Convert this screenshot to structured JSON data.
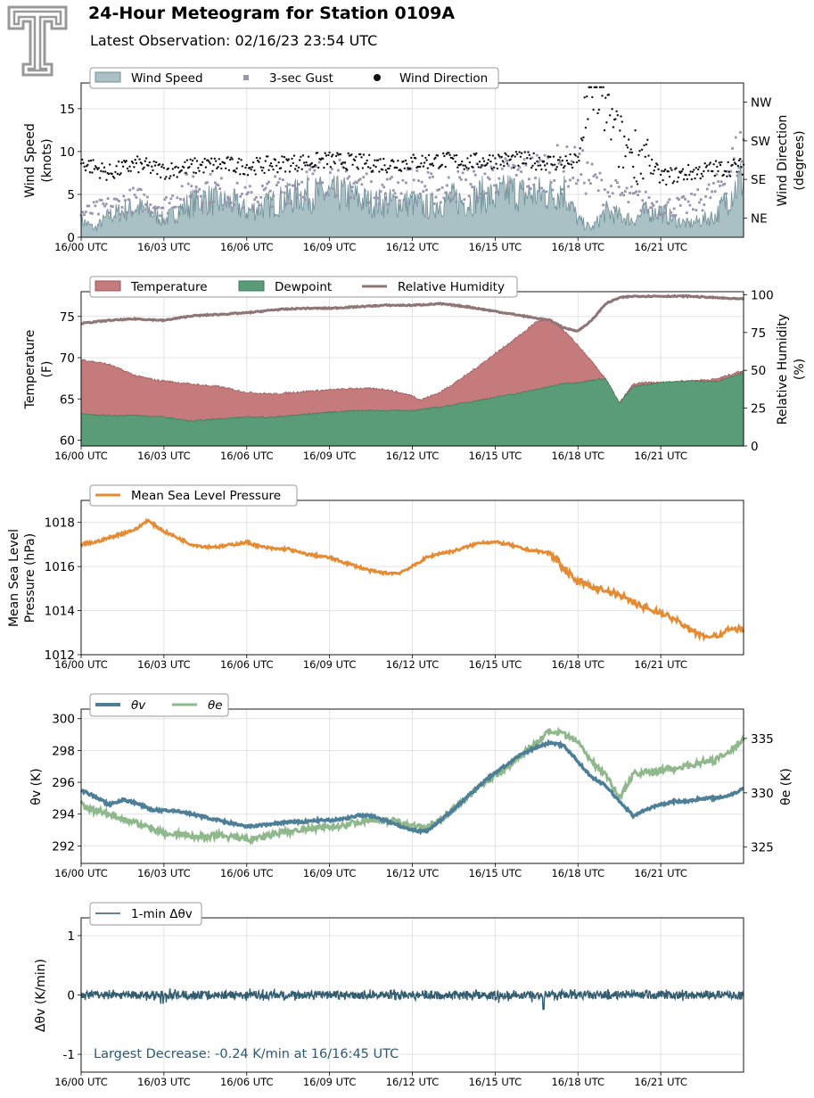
{
  "header": {
    "title": "24-Hour Meteogram for Station 0109A",
    "subtitle": "Latest Observation: 02/16/23 23:54 UTC"
  },
  "colors": {
    "wind_speed": "#a9c0c5",
    "wind_speed_line": "#6f8f97",
    "gust": "#9a94b3",
    "direction": "#111111",
    "temperature": "#c57a7b",
    "dewpoint": "#5a9c78",
    "rh": "#8f7576",
    "pressure": "#e48b33",
    "theta_v": "#4d7f98",
    "theta_e": "#8fb98c",
    "dtheta": "#335d70",
    "annotation": "#2b5a75"
  },
  "x_ticks": [
    "16/00 UTC",
    "16/03 UTC",
    "16/06 UTC",
    "16/09 UTC",
    "16/12 UTC",
    "16/15 UTC",
    "16/18 UTC",
    "16/21 UTC"
  ],
  "chart_data": [
    {
      "id": "wind",
      "type": "area",
      "xlim_hours": [
        0,
        24
      ],
      "ylabel": "Wind Speed (knots)",
      "ylabel_lines": [
        "Wind Speed",
        "(knots)"
      ],
      "ylim": [
        0,
        18
      ],
      "yticks": [
        "0",
        "5",
        "10",
        "15"
      ],
      "y2label_lines": [
        "Wind Direction",
        "(degrees)"
      ],
      "y2lim": [
        0,
        360
      ],
      "y2ticks": [
        {
          "value": 45,
          "label": "NE"
        },
        {
          "value": 135,
          "label": "SE"
        },
        {
          "value": 225,
          "label": "SW"
        },
        {
          "value": 315,
          "label": "NW"
        }
      ],
      "legend": [
        "Wind Speed",
        "3-sec Gust",
        "Wind Direction"
      ],
      "series": [
        {
          "name": "Wind Speed",
          "x": [
            0,
            0.5,
            1,
            1.5,
            2,
            2.5,
            3,
            3.5,
            4,
            4.5,
            5,
            5.5,
            6,
            6.5,
            7,
            7.5,
            8,
            8.5,
            9,
            9.5,
            10,
            10.5,
            11,
            11.5,
            12,
            12.5,
            13,
            13.5,
            14,
            14.5,
            15,
            15.5,
            16,
            16.5,
            17,
            17.5,
            18,
            18.5,
            19,
            19.5,
            20,
            20.5,
            21,
            21.5,
            22,
            22.5,
            23,
            23.5,
            24
          ],
          "values": [
            2,
            1,
            2.5,
            3,
            3.5,
            3,
            2,
            3,
            4,
            4.5,
            4,
            4,
            3,
            3.5,
            4,
            4.5,
            5,
            5,
            5,
            5,
            4.5,
            4,
            4,
            4,
            4,
            3.5,
            4,
            4.5,
            4,
            5,
            4.5,
            5.5,
            5,
            5,
            5,
            5.5,
            2,
            1,
            3,
            2.5,
            2,
            3,
            3,
            2,
            1.5,
            2,
            2.5,
            5,
            7
          ]
        },
        {
          "name": "3-sec Gust",
          "x": [
            0,
            1,
            2,
            3,
            4,
            5,
            6,
            7,
            8,
            9,
            10,
            11,
            12,
            13,
            14,
            15,
            16,
            17,
            18,
            19,
            20,
            21,
            22,
            23,
            24
          ],
          "values": [
            3,
            4,
            5,
            4,
            7,
            6,
            5,
            6,
            7,
            8,
            7,
            6,
            7,
            6,
            7,
            8,
            8,
            9,
            9,
            6,
            5,
            4,
            4,
            6,
            12
          ]
        },
        {
          "name": "Wind Direction",
          "x": [
            0,
            1,
            2,
            3,
            4,
            5,
            6,
            7,
            8,
            9,
            10,
            11,
            12,
            13,
            14,
            15,
            16,
            17,
            18,
            18.5,
            19,
            19.5,
            20,
            20.5,
            21,
            22,
            23,
            24
          ],
          "values": [
            175,
            150,
            170,
            155,
            165,
            170,
            165,
            170,
            175,
            180,
            175,
            170,
            175,
            180,
            175,
            180,
            180,
            175,
            175,
            350,
            300,
            220,
            200,
            180,
            140,
            150,
            160,
            165
          ]
        }
      ]
    },
    {
      "id": "temp",
      "type": "area",
      "xlim_hours": [
        0,
        24
      ],
      "ylabel_lines": [
        "Temperature",
        "(F)"
      ],
      "ylim": [
        59.3,
        78
      ],
      "yticks": [
        "60",
        "65",
        "70",
        "75"
      ],
      "y2label_lines": [
        "Relative Humidity",
        "(%)"
      ],
      "y2lim": [
        0,
        102
      ],
      "y2ticks": [
        "0",
        "25",
        "50",
        "75",
        "100"
      ],
      "legend": [
        "Temperature",
        "Dewpoint",
        "Relative Humidity"
      ],
      "series": [
        {
          "name": "Temperature",
          "x": [
            0,
            1,
            2,
            2.7,
            3,
            4,
            5,
            6,
            7,
            8,
            9,
            10,
            11,
            12,
            12.3,
            13,
            14,
            15,
            16,
            16.5,
            17,
            17.4,
            18,
            19,
            19.5,
            20,
            20.5,
            21,
            22,
            23,
            24
          ],
          "values": [
            69.8,
            69.2,
            67.8,
            67.3,
            67.2,
            66.8,
            66.5,
            65.8,
            65.6,
            65.9,
            66.1,
            66.3,
            66.2,
            65.4,
            64.9,
            65.8,
            68,
            70.5,
            73,
            74.4,
            74.6,
            73.6,
            71.5,
            67.5,
            64.5,
            66.8,
            67,
            67,
            67.2,
            67.4,
            68.5
          ]
        },
        {
          "name": "Dewpoint",
          "x": [
            0,
            1,
            2,
            3,
            4,
            5,
            6,
            7,
            8,
            9,
            10,
            11,
            12,
            13,
            14,
            15,
            16,
            17,
            17.5,
            18,
            19,
            19.5,
            20,
            21,
            22,
            23,
            24
          ],
          "values": [
            63.2,
            63,
            63,
            62.8,
            62.3,
            62.6,
            62.8,
            62.8,
            63.1,
            63.4,
            63.6,
            63.6,
            63.6,
            64,
            64.6,
            65.2,
            65.8,
            66.5,
            66.9,
            67,
            67.5,
            64.5,
            66.5,
            67,
            67.2,
            67.1,
            68.2
          ]
        },
        {
          "name": "Relative Humidity",
          "x": [
            0,
            1,
            2,
            3,
            4,
            5,
            6,
            7,
            8,
            9,
            10,
            11,
            12,
            13,
            14,
            15,
            16,
            17,
            17.5,
            18,
            18.5,
            19,
            19.5,
            20,
            21,
            22,
            23,
            24
          ],
          "values": [
            81,
            83,
            84,
            83,
            86,
            87,
            88,
            90,
            91,
            91,
            92,
            93,
            93,
            94,
            92,
            89,
            86,
            83,
            78,
            76,
            83,
            94,
            98,
            99,
            99,
            99,
            98,
            97
          ]
        }
      ]
    },
    {
      "id": "pressure",
      "type": "line",
      "xlim_hours": [
        0,
        24
      ],
      "ylabel_lines": [
        "Mean Sea Level",
        "Pressure (hPa)"
      ],
      "ylim": [
        1012,
        1019
      ],
      "yticks": [
        "1012",
        "1014",
        "1016",
        "1018"
      ],
      "legend": [
        "Mean Sea Level Pressure"
      ],
      "series": [
        {
          "name": "Mean Sea Level Pressure",
          "x": [
            0,
            0.5,
            1,
            1.5,
            2,
            2.5,
            2.4,
            3,
            3.5,
            4,
            4.5,
            5,
            5.5,
            6,
            6.5,
            7,
            7.5,
            8,
            8.5,
            9,
            9.5,
            10,
            10.5,
            11,
            11.5,
            12,
            12.5,
            13,
            13.5,
            14,
            14.5,
            15,
            15.5,
            16,
            16.5,
            17,
            17.5,
            18,
            18.5,
            19,
            19.5,
            20,
            20.5,
            21,
            21.5,
            22,
            22.5,
            23,
            23.5,
            24
          ],
          "values": [
            1017.0,
            1017.1,
            1017.3,
            1017.5,
            1017.7,
            1018.0,
            1018.1,
            1017.6,
            1017.3,
            1017.0,
            1016.9,
            1016.9,
            1017.0,
            1017.1,
            1016.9,
            1016.8,
            1016.8,
            1016.6,
            1016.5,
            1016.4,
            1016.2,
            1016.0,
            1015.8,
            1015.7,
            1015.7,
            1016.0,
            1016.4,
            1016.6,
            1016.7,
            1016.9,
            1017.1,
            1017.1,
            1017.0,
            1016.8,
            1016.7,
            1016.6,
            1015.9,
            1015.3,
            1015.1,
            1014.9,
            1014.7,
            1014.4,
            1014.1,
            1013.9,
            1013.6,
            1013.2,
            1012.9,
            1012.8,
            1013.2,
            1013.1
          ]
        }
      ]
    },
    {
      "id": "theta",
      "type": "line",
      "xlim_hours": [
        0,
        24
      ],
      "ylabel": "θv (K)",
      "ylim": [
        290.9,
        300.6
      ],
      "yticks": [
        "292",
        "294",
        "296",
        "298",
        "300"
      ],
      "y2label": "θe (K)",
      "y2lim": [
        323.5,
        337.7
      ],
      "y2ticks": [
        "325",
        "330",
        "335"
      ],
      "legend": [
        "θv",
        "θe"
      ],
      "series": [
        {
          "name": "θv",
          "x": [
            0,
            0.5,
            1,
            1.5,
            2,
            2.5,
            3,
            3.5,
            4,
            4.5,
            5,
            5.5,
            6,
            6.5,
            7,
            7.5,
            8,
            8.5,
            9,
            9.5,
            10,
            10.5,
            11,
            11.5,
            12,
            12.5,
            13,
            13.5,
            14,
            14.5,
            15,
            15.5,
            16,
            16.5,
            17,
            17.5,
            18,
            18.5,
            19,
            19.5,
            20,
            20.5,
            21,
            21.5,
            22,
            22.5,
            23,
            23.5,
            24
          ],
          "values": [
            295.5,
            295.1,
            294.6,
            294.9,
            294.7,
            294.3,
            294.2,
            294.2,
            294.0,
            293.8,
            293.6,
            293.4,
            293.2,
            293.3,
            293.4,
            293.5,
            293.5,
            293.6,
            293.6,
            293.7,
            293.9,
            293.9,
            293.6,
            293.3,
            293.0,
            292.9,
            293.6,
            294.3,
            295.1,
            295.9,
            296.6,
            297.2,
            297.8,
            298.2,
            298.5,
            298.3,
            297.3,
            296.3,
            295.8,
            294.8,
            293.9,
            294.3,
            294.6,
            294.8,
            294.8,
            295.0,
            295.0,
            295.2,
            295.6
          ]
        },
        {
          "name": "θe",
          "x": [
            0,
            0.5,
            1,
            1.5,
            2,
            2.5,
            3,
            3.5,
            4,
            4.5,
            5,
            5.5,
            6,
            6.5,
            7,
            7.5,
            8,
            8.5,
            9,
            9.5,
            10,
            10.5,
            11,
            11.5,
            12,
            12.5,
            13,
            13.5,
            14,
            14.5,
            15,
            15.5,
            16,
            16.5,
            17,
            17.5,
            18,
            18.5,
            19,
            19.5,
            20,
            20.5,
            21,
            21.5,
            22,
            22.5,
            23,
            23.5,
            24
          ],
          "values": [
            329.0,
            328.3,
            328.1,
            327.6,
            327.2,
            326.8,
            326.3,
            326.2,
            326.0,
            325.9,
            326.1,
            325.9,
            325.7,
            325.8,
            326.2,
            326.4,
            326.6,
            326.7,
            326.9,
            327.0,
            327.3,
            327.6,
            327.5,
            327.3,
            326.9,
            326.8,
            327.5,
            328.5,
            329.6,
            330.7,
            331.6,
            332.5,
            333.6,
            334.6,
            335.7,
            335.3,
            334.7,
            332.8,
            331.8,
            329.5,
            331.7,
            331.9,
            332.0,
            332.3,
            332.5,
            332.8,
            333.0,
            333.8,
            335.0
          ]
        }
      ]
    },
    {
      "id": "dtheta",
      "type": "line",
      "xlim_hours": [
        0,
        24
      ],
      "ylabel": "Δθv (K/min)",
      "ylim": [
        -1.3,
        1.3
      ],
      "yticks": [
        "-1",
        "0",
        "1"
      ],
      "legend": [
        "1-min Δθv"
      ],
      "annotation": "Largest Decrease: -0.24 K/min at 16/16:45 UTC",
      "series": [
        {
          "name": "1-min Δθv",
          "x": [
            0,
            1,
            2,
            3,
            4,
            5,
            6,
            7,
            8,
            9,
            10,
            11,
            12,
            13,
            14,
            15,
            16,
            17,
            18,
            19,
            20,
            21,
            22,
            23,
            24
          ],
          "values": [
            0,
            0.1,
            -0.1,
            0.25,
            -0.15,
            0.1,
            -0.15,
            0.12,
            -0.1,
            0.1,
            -0.1,
            0.1,
            -0.12,
            0.1,
            -0.1,
            0.12,
            0.3,
            -0.24,
            0.15,
            -0.1,
            0.1,
            -0.1,
            0.1,
            -0.1,
            0.05
          ]
        }
      ]
    }
  ]
}
